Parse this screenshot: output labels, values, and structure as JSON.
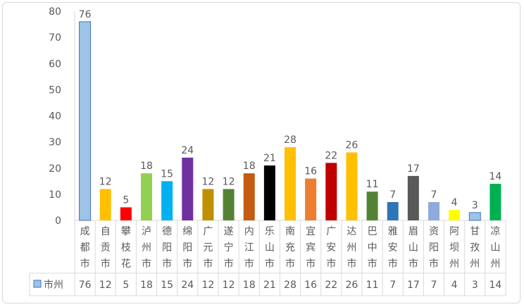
{
  "chart_data": {
    "type": "bar",
    "categories": [
      "成都市",
      "自贡市",
      "攀枝花",
      "泸州市",
      "德阳市",
      "绵阳市",
      "广元市",
      "遂宁市",
      "内江市",
      "乐山市",
      "南充市",
      "宜宾市",
      "广安市",
      "达州市",
      "巴中市",
      "雅安市",
      "眉山市",
      "资阳市",
      "阿坝州",
      "甘孜州",
      "凉山州"
    ],
    "series": [
      {
        "name": "市州",
        "values": [
          76,
          12,
          5,
          18,
          15,
          24,
          12,
          12,
          18,
          21,
          28,
          16,
          22,
          26,
          11,
          7,
          17,
          7,
          4,
          3,
          14
        ]
      }
    ],
    "bar_colors": [
      "#9dc3e6",
      "#ffc000",
      "#ff0000",
      "#92d050",
      "#00b0f0",
      "#7030a0",
      "#bf9000",
      "#548235",
      "#c55a11",
      "#000000",
      "#ffc000",
      "#ed7d31",
      "#c00000",
      "#ffc000",
      "#548235",
      "#2e75b6",
      "#595959",
      "#8faadc",
      "#ffff00",
      "#9dc3e6",
      "#00b050"
    ],
    "ylim": [
      0,
      80
    ],
    "yticks": [
      0,
      10,
      20,
      30,
      40,
      50,
      60,
      70,
      80
    ],
    "grid": false,
    "legend": "bottom-left in data table",
    "data_table": true
  }
}
